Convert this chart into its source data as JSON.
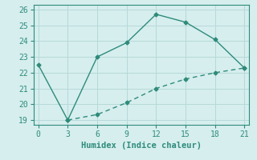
{
  "line1_x": [
    0,
    3,
    6,
    9,
    12,
    15,
    18,
    21
  ],
  "line1_y": [
    22.5,
    19.0,
    23.0,
    23.9,
    25.7,
    25.2,
    24.1,
    22.3
  ],
  "line2_x": [
    3,
    6,
    9,
    12,
    15,
    18,
    21
  ],
  "line2_y": [
    19.0,
    19.35,
    20.1,
    21.0,
    21.6,
    22.0,
    22.3
  ],
  "line_color": "#2e8b7a",
  "bg_color": "#d6eeee",
  "grid_color": "#b8d8d8",
  "xlabel": "Humidex (Indice chaleur)",
  "xlim": [
    -0.5,
    21.5
  ],
  "ylim": [
    18.7,
    26.3
  ],
  "xticks": [
    0,
    3,
    6,
    9,
    12,
    15,
    18,
    21
  ],
  "yticks": [
    19,
    20,
    21,
    22,
    23,
    24,
    25,
    26
  ],
  "xlabel_fontsize": 7.5,
  "tick_fontsize": 7,
  "marker": "D",
  "markersize": 2.5,
  "linewidth": 1.0
}
